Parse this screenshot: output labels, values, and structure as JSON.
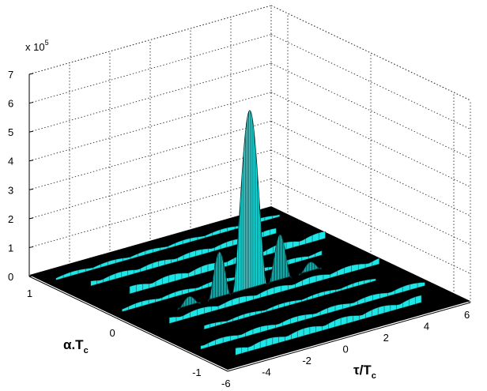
{
  "chart_data": {
    "type": "surface",
    "title": "",
    "exponent_label": "x 10",
    "exponent_power": "5",
    "xlabel": {
      "main": "τ/T",
      "sub": "c"
    },
    "ylabel": {
      "main": "α.T",
      "sub": "c"
    },
    "xlim": [
      -6,
      6
    ],
    "ylim": [
      -1.2,
      1.2
    ],
    "zlim": [
      0,
      7
    ],
    "x_ticks": [
      "-6",
      "-4",
      "-2",
      "0",
      "2",
      "4",
      "6"
    ],
    "y_ticks": [
      "1",
      "0",
      "-1"
    ],
    "z_ticks": [
      "0",
      "1",
      "2",
      "3",
      "4",
      "5",
      "6",
      "7"
    ],
    "grid": true,
    "colors": {
      "surface": "#1ee6e6",
      "floor": "#000000",
      "grid": "#333333"
    },
    "peaks": [
      {
        "tau": 0,
        "alpha": 0,
        "value": 6.2
      },
      {
        "tau": -1.5,
        "alpha": 0,
        "value": 1.6
      },
      {
        "tau": 1.5,
        "alpha": 0,
        "value": 1.6
      },
      {
        "tau": -3,
        "alpha": 0,
        "value": 0.35
      },
      {
        "tau": 3,
        "alpha": 0,
        "value": 0.35
      }
    ]
  }
}
